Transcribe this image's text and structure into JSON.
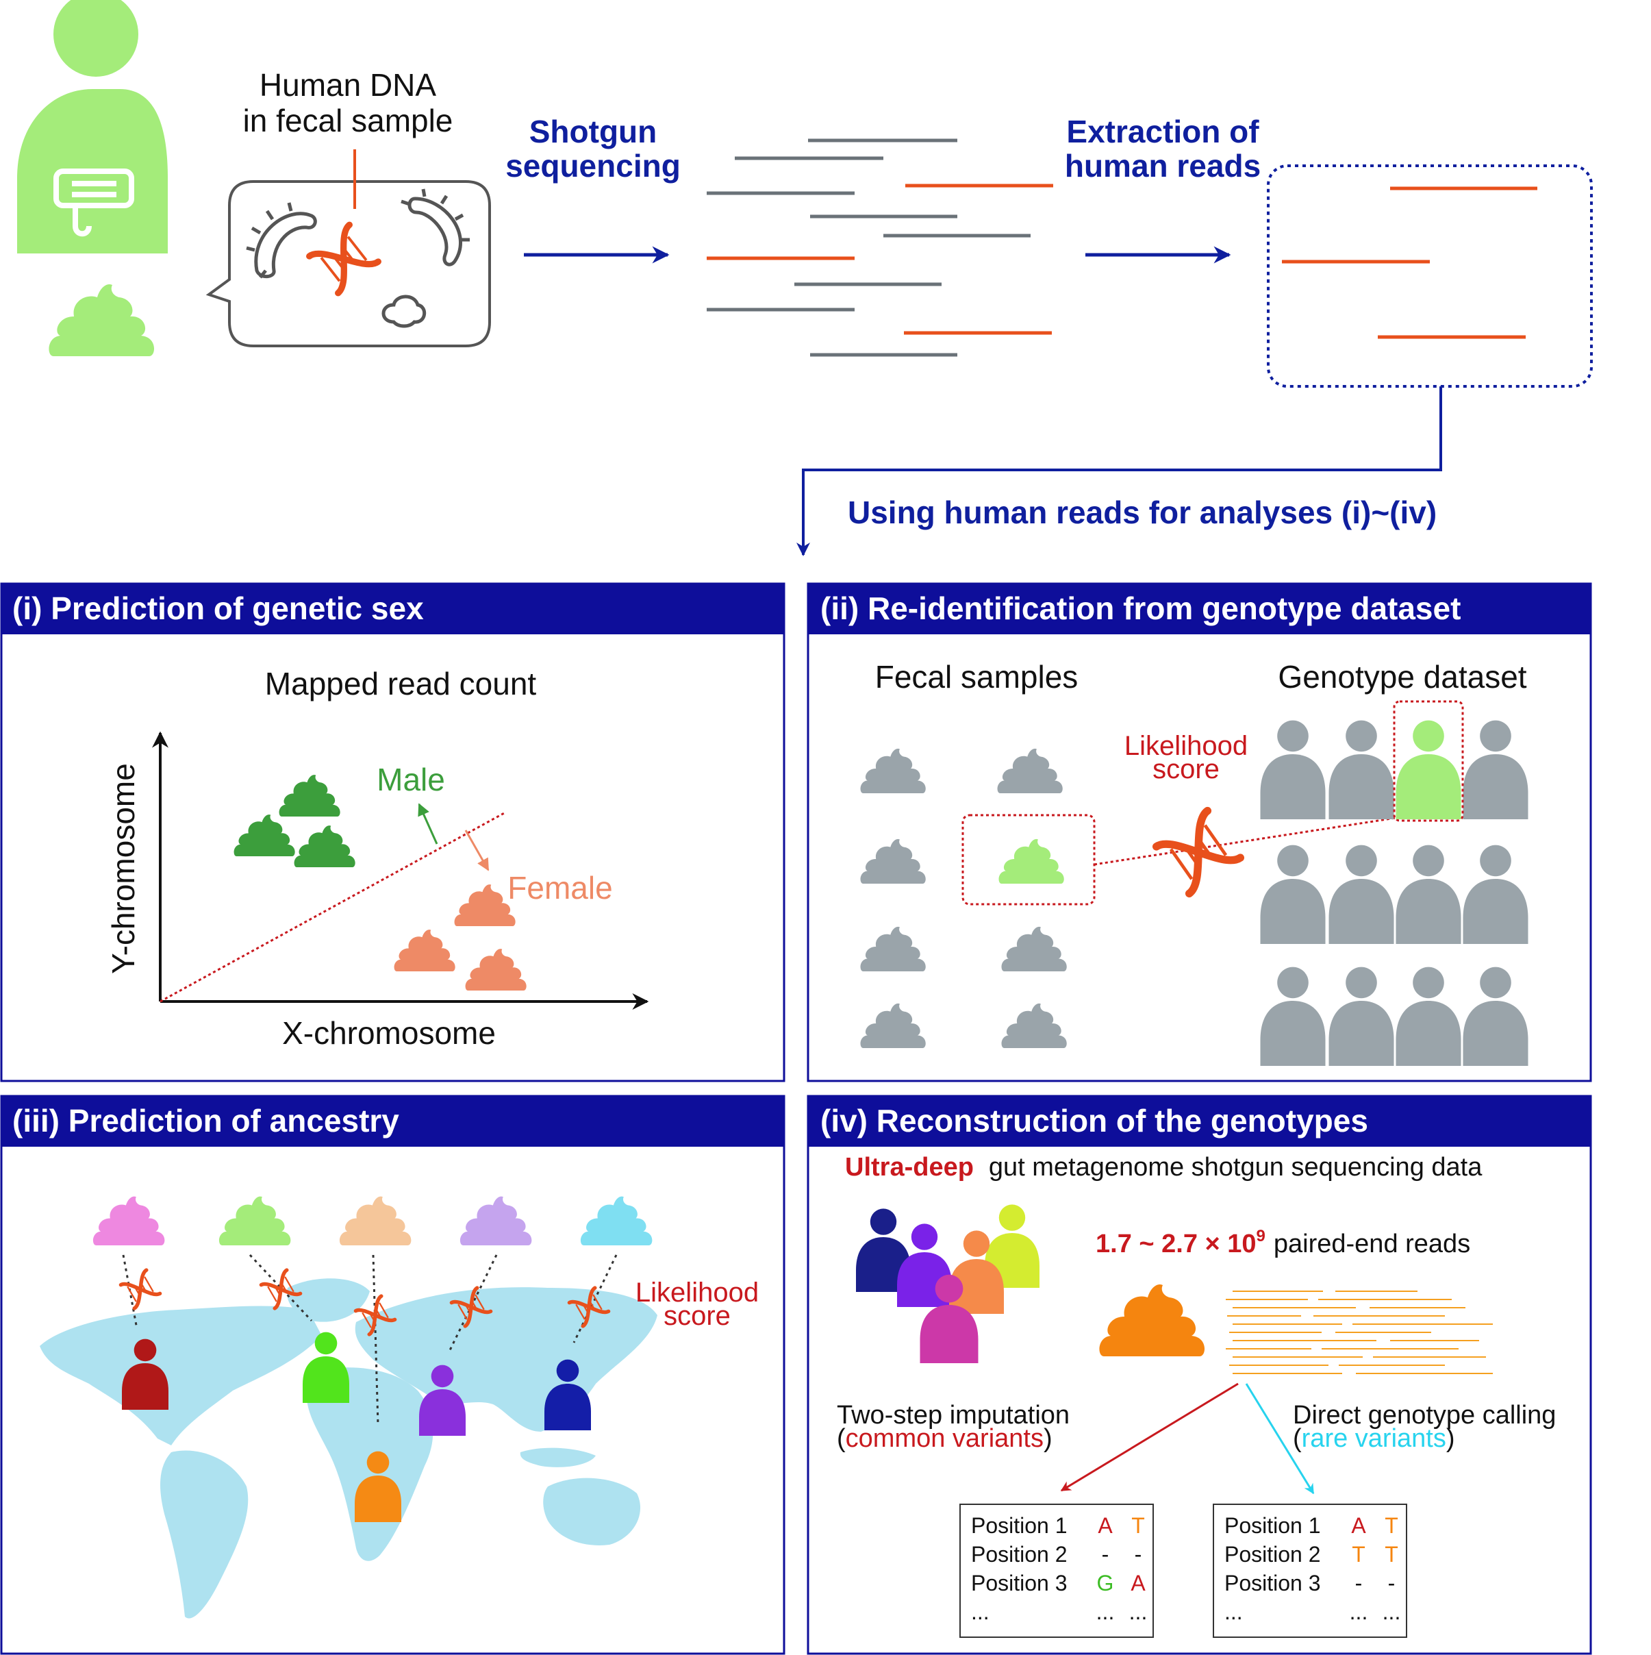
{
  "top": {
    "fecal_label_line1": "Human DNA",
    "fecal_label_line2": "in fecal sample",
    "step1_line1": "Shotgun",
    "step1_line2": "sequencing",
    "step2_line1": "Extraction of",
    "step2_line2": "human reads",
    "analyses_label": "Using human reads for analyses (i)~(iv)"
  },
  "panel1": {
    "title": "(i) Prediction of genetic sex",
    "chart_title": "Mapped read count",
    "xlabel": "X-chromosome",
    "ylabel": "Y-chromosome",
    "male_label": "Male",
    "female_label": "Female"
  },
  "panel2": {
    "title": "(ii) Re-identification from genotype dataset",
    "fecal_header": "Fecal samples",
    "genotype_header": "Genotype dataset",
    "likelihood_line1": "Likelihood",
    "likelihood_line2": "score"
  },
  "panel3": {
    "title": "(iii) Prediction of ancestry",
    "likelihood_line1": "Likelihood",
    "likelihood_line2": "score"
  },
  "panel4": {
    "title": "(iv) Reconstruction of the genotypes",
    "ultra_deep": "Ultra-deep",
    "subtitle_rest": "gut metagenome shotgun sequencing data",
    "reads_value": "1.7 ~ 2.7 × 10",
    "reads_exp": "9",
    "reads_rest": "paired-end reads",
    "method1_line1": "Two-step imputation",
    "method1_paren_open": "(",
    "method1_variant": "common variants",
    "method1_paren_close": ")",
    "method2_line1": "Direct genotype calling",
    "method2_paren_open": "(",
    "method2_variant": "rare variants",
    "method2_paren_close": ")",
    "table1": [
      {
        "position": "Position 1",
        "a1": "A",
        "a2": "T"
      },
      {
        "position": "Position 2",
        "a1": "-",
        "a2": "-"
      },
      {
        "position": "Position 3",
        "a1": "G",
        "a2": "A"
      },
      {
        "position": "...",
        "a1": "...",
        "a2": "..."
      }
    ],
    "table2": [
      {
        "position": "Position 1",
        "a1": "A",
        "a2": "T"
      },
      {
        "position": "Position 2",
        "a1": "T",
        "a2": "T"
      },
      {
        "position": "Position 3",
        "a1": "-",
        "a2": "-"
      },
      {
        "position": "...",
        "a1": "...",
        "a2": "..."
      }
    ]
  },
  "colors": {
    "navy": "#0f1f9e",
    "header_bg": "#0e0e9a",
    "dna_orange": "#e8501c",
    "read_gray": "#6a7278",
    "person_green": "#a4ec7a",
    "gray_icon": "#9aa4aa",
    "male_green": "#3c9e3c",
    "female_salmon": "#ee8a66",
    "map_blue": "#aee2f0",
    "red_text": "#c8191e",
    "cyan": "#27d3ee"
  }
}
